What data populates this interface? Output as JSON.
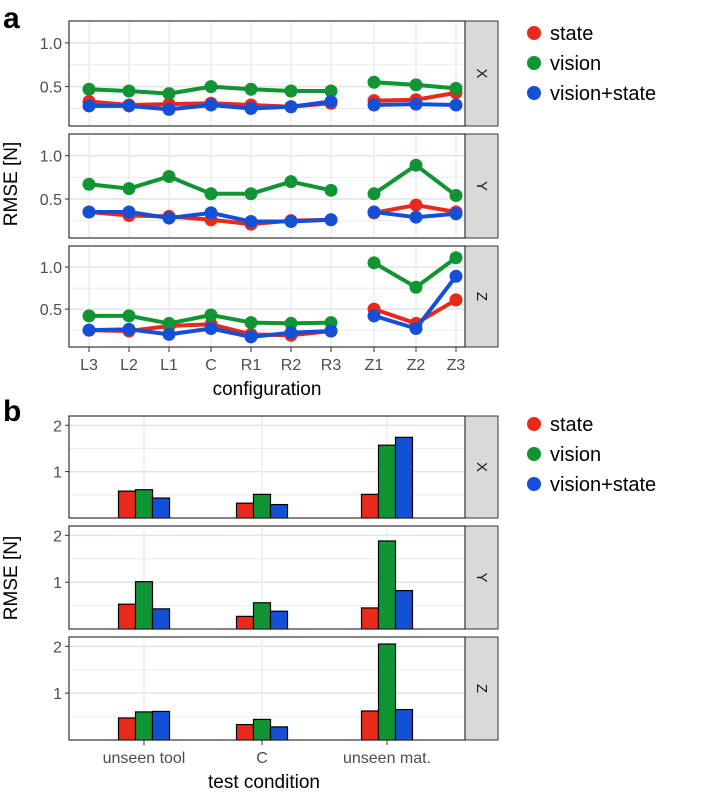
{
  "labels": {
    "a": "a",
    "b": "b"
  },
  "chart_data": [
    {
      "type": "line",
      "panel": "a",
      "xlabel": "configuration",
      "ylabel": "RMSE [N]",
      "x": [
        "L3",
        "L2",
        "L1",
        "C",
        "R1",
        "R2",
        "R3",
        "Z1",
        "Z2",
        "Z3"
      ],
      "gap_after": "R3",
      "ylim": [
        0.05,
        1.25
      ],
      "yticks": [
        0.5,
        1.0
      ],
      "ytick_labels": [
        "0.5",
        "1.0"
      ],
      "legend": "right",
      "grid": true,
      "facets": [
        {
          "strip": "X",
          "series": [
            {
              "name": "state",
              "color": "#e8291c",
              "values": [
                0.33,
                0.29,
                0.3,
                0.31,
                0.29,
                0.27,
                0.31,
                0.34,
                0.35,
                0.43
              ]
            },
            {
              "name": "vision",
              "color": "#119433",
              "values": [
                0.47,
                0.45,
                0.42,
                0.5,
                0.47,
                0.45,
                0.45,
                0.55,
                0.52,
                0.48
              ]
            },
            {
              "name": "vision+state",
              "color": "#1450d6",
              "values": [
                0.28,
                0.28,
                0.24,
                0.29,
                0.25,
                0.27,
                0.33,
                0.29,
                0.3,
                0.29
              ]
            }
          ]
        },
        {
          "strip": "Y",
          "series": [
            {
              "name": "state",
              "color": "#e8291c",
              "values": [
                0.35,
                0.31,
                0.3,
                0.26,
                0.21,
                0.25,
                0.26,
                0.34,
                0.43,
                0.35
              ]
            },
            {
              "name": "vision",
              "color": "#119433",
              "values": [
                0.67,
                0.62,
                0.76,
                0.56,
                0.56,
                0.7,
                0.6,
                0.56,
                0.89,
                0.54
              ]
            },
            {
              "name": "vision+state",
              "color": "#1450d6",
              "values": [
                0.35,
                0.35,
                0.28,
                0.34,
                0.24,
                0.24,
                0.26,
                0.35,
                0.29,
                0.33
              ]
            }
          ]
        },
        {
          "strip": "Z",
          "series": [
            {
              "name": "state",
              "color": "#e8291c",
              "values": [
                0.25,
                0.24,
                0.3,
                0.32,
                0.2,
                0.19,
                0.24,
                0.5,
                0.33,
                0.61
              ]
            },
            {
              "name": "vision",
              "color": "#119433",
              "values": [
                0.42,
                0.42,
                0.33,
                0.43,
                0.34,
                0.33,
                0.34,
                1.05,
                0.76,
                1.11
              ]
            },
            {
              "name": "vision+state",
              "color": "#1450d6",
              "values": [
                0.25,
                0.26,
                0.2,
                0.27,
                0.17,
                0.22,
                0.24,
                0.42,
                0.27,
                0.89
              ]
            }
          ]
        }
      ]
    },
    {
      "type": "bar",
      "panel": "b",
      "xlabel": "test condition",
      "ylabel": "RMSE [N]",
      "categories": [
        "unseen tool",
        "C",
        "unseen mat."
      ],
      "ylim": [
        0,
        2.2
      ],
      "yticks": [
        1,
        2
      ],
      "ytick_labels": [
        "1",
        "2"
      ],
      "legend": "right",
      "grid": true,
      "facets": [
        {
          "strip": "X",
          "series": [
            {
              "name": "state",
              "color": "#e8291c",
              "values": [
                0.58,
                0.32,
                0.51
              ]
            },
            {
              "name": "vision",
              "color": "#119433",
              "values": [
                0.61,
                0.51,
                1.57
              ]
            },
            {
              "name": "vision+state",
              "color": "#1450d6",
              "values": [
                0.43,
                0.29,
                1.74
              ]
            }
          ]
        },
        {
          "strip": "Y",
          "series": [
            {
              "name": "state",
              "color": "#e8291c",
              "values": [
                0.53,
                0.27,
                0.45
              ]
            },
            {
              "name": "vision",
              "color": "#119433",
              "values": [
                1.01,
                0.56,
                1.88
              ]
            },
            {
              "name": "vision+state",
              "color": "#1450d6",
              "values": [
                0.43,
                0.38,
                0.82
              ]
            }
          ]
        },
        {
          "strip": "Z",
          "series": [
            {
              "name": "state",
              "color": "#e8291c",
              "values": [
                0.47,
                0.33,
                0.62
              ]
            },
            {
              "name": "vision",
              "color": "#119433",
              "values": [
                0.6,
                0.44,
                2.05
              ]
            },
            {
              "name": "vision+state",
              "color": "#1450d6",
              "values": [
                0.61,
                0.28,
                0.65
              ]
            }
          ]
        }
      ]
    }
  ]
}
